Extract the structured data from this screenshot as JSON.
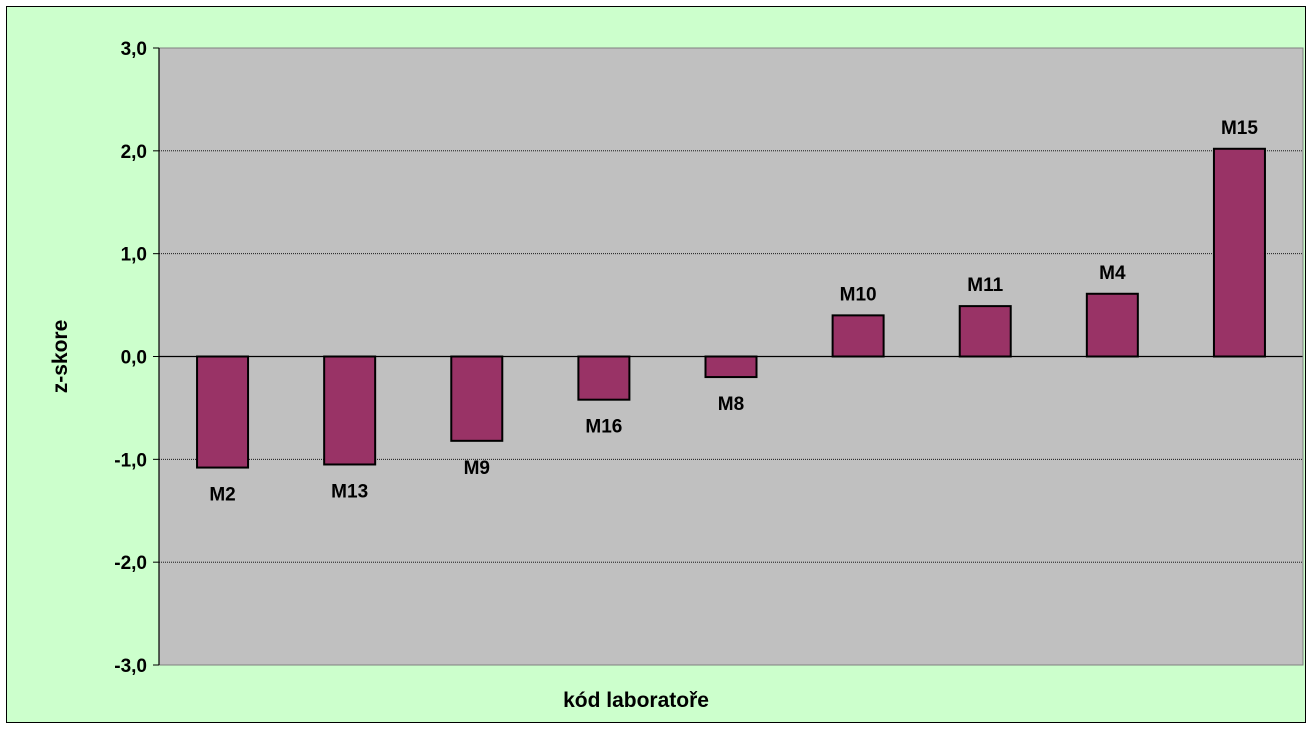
{
  "chart_data": {
    "type": "bar",
    "xlabel": "kód laboratoře",
    "ylabel": "z-skore",
    "ylim": [
      -3,
      3
    ],
    "yticks": [
      3,
      2,
      1,
      0,
      -1,
      -2,
      -3
    ],
    "ytick_labels": [
      "3,0",
      "2,0",
      "1,0",
      "0,0",
      "-1,0",
      "-2,0",
      "-3,0"
    ],
    "categories": [
      "M2",
      "M13",
      "M9",
      "M16",
      "M8",
      "M10",
      "M11",
      "M4",
      "M15"
    ],
    "values": [
      -1.08,
      -1.05,
      -0.82,
      -0.42,
      -0.2,
      0.4,
      0.49,
      0.61,
      2.02
    ],
    "grid": true,
    "legend": "none",
    "colors": {
      "chart_background": "#ccffcc",
      "plot_background": "#c0c0c0",
      "bar_fill": "#993366",
      "bar_stroke": "#000000",
      "gridline": "#000000"
    }
  }
}
